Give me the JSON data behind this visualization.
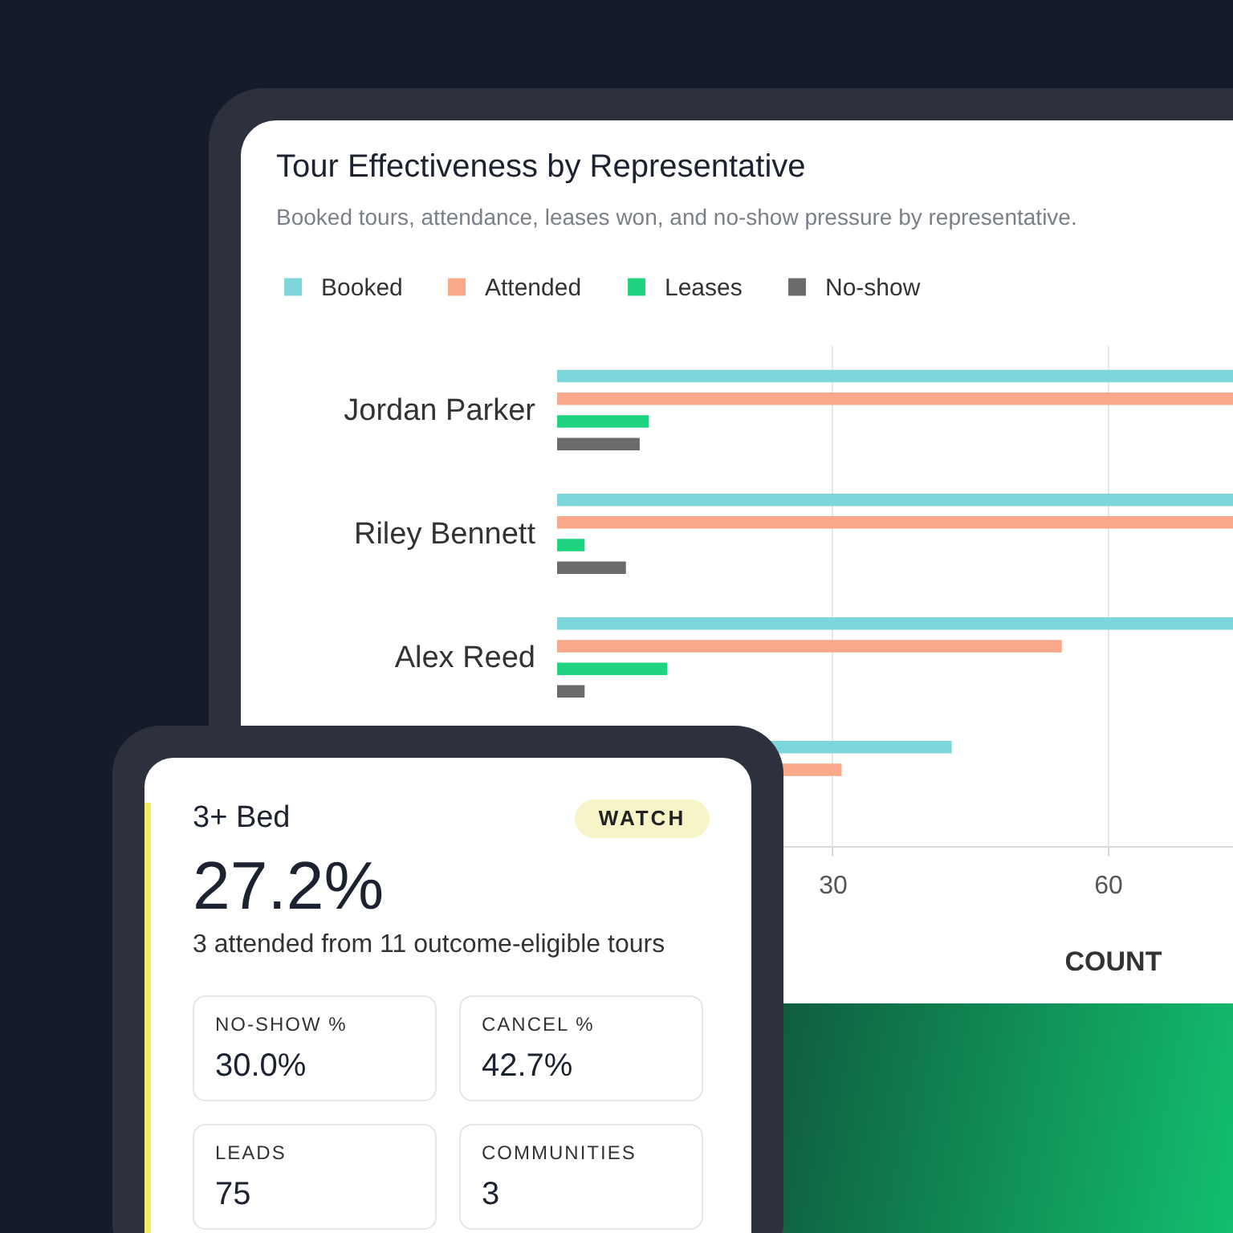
{
  "chart_data": [
    {
      "type": "bar",
      "orientation": "horizontal",
      "title": "Tour Effectiveness by Representative",
      "subtitle": "Booked tours, attendance, leases won, and no-show pressure by representative.",
      "xlabel": "COUNT",
      "categories": [
        "Jordan Parker",
        "Riley Bennett",
        "Alex Reed",
        null
      ],
      "series": [
        {
          "name": "Booked",
          "color": "#7dd6d9",
          "values": [
            74,
            74,
            74,
            43
          ]
        },
        {
          "name": "Attended",
          "color": "#f9a98a",
          "values": [
            74,
            74,
            55,
            31
          ]
        },
        {
          "name": "Leases",
          "color": "#1ed47f",
          "values": [
            10,
            3,
            12,
            null
          ]
        },
        {
          "name": "No-show",
          "color": "#6b6b6b",
          "values": [
            9,
            7.5,
            3,
            null
          ]
        }
      ],
      "xlim": [
        0,
        74
      ],
      "xticks": [
        30,
        60
      ],
      "grid": "x",
      "legend": "top left"
    },
    {
      "type": "other",
      "title": "3+ Bed",
      "annotations": [
        "WATCH",
        "27.2%",
        "3 attended from 11 outcome-eligible tours",
        "NO-SHOW %",
        "30.0%",
        "CANCEL %",
        "42.7%",
        "LEADS",
        "75",
        "COMMUNITIES",
        "3"
      ]
    }
  ]
}
